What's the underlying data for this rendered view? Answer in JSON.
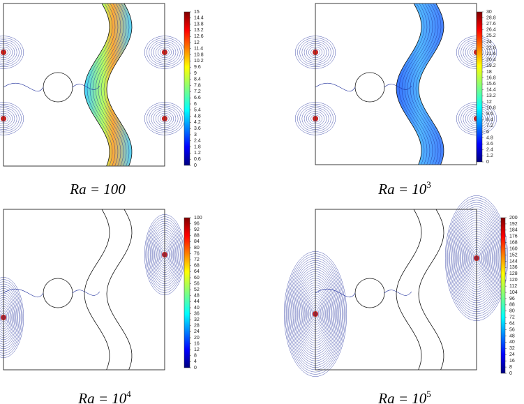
{
  "panels": [
    {
      "caption": {
        "base": "Ra = 100",
        "sup": null
      },
      "colorbar": {
        "ticks": [
          0,
          0.6,
          1.2,
          1.8,
          2.4,
          3,
          3.6,
          4.2,
          4.8,
          5.4,
          6,
          6.6,
          7.2,
          7.8,
          8.4,
          9,
          9.6,
          10.2,
          10.8,
          11.4,
          12,
          12.6,
          13.2,
          13.8,
          14.4,
          15
        ]
      }
    },
    {
      "caption": {
        "base": "Ra = 10",
        "sup": "3"
      },
      "colorbar": {
        "ticks": [
          0,
          1.2,
          2.4,
          3.6,
          4.8,
          6,
          7.2,
          8.4,
          9.6,
          10.8,
          12,
          13.2,
          14.4,
          15.6,
          16.8,
          18,
          19.2,
          20.4,
          21.6,
          22.8,
          24,
          25.2,
          26.4,
          27.6,
          28.8,
          30
        ]
      }
    },
    {
      "caption": {
        "base": "Ra = 10",
        "sup": "4"
      },
      "colorbar": {
        "ticks": [
          0,
          4,
          8,
          12,
          16,
          20,
          24,
          28,
          32,
          36,
          40,
          44,
          48,
          52,
          56,
          60,
          64,
          68,
          72,
          76,
          80,
          84,
          88,
          92,
          96,
          100
        ]
      }
    },
    {
      "caption": {
        "base": "Ra = 10",
        "sup": "5"
      },
      "colorbar": {
        "ticks": [
          0,
          8,
          16,
          24,
          32,
          40,
          48,
          56,
          64,
          72,
          80,
          88,
          96,
          104,
          112,
          120,
          128,
          136,
          144,
          152,
          160,
          168,
          176,
          184,
          192,
          200
        ]
      }
    }
  ]
}
